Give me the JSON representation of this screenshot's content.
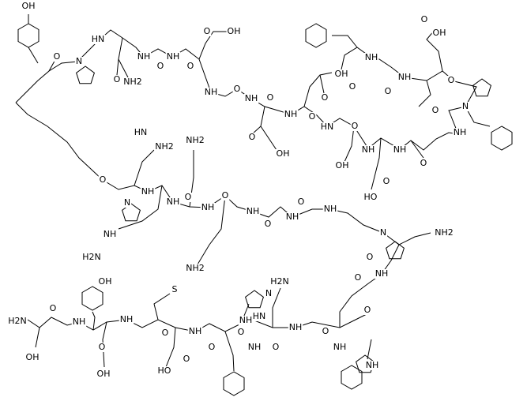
{
  "atoms": [
    "OH",
    "O",
    "N",
    "HN",
    "O",
    "NH2",
    "NH",
    "O",
    "NH",
    "O",
    "OH",
    "O",
    "NH",
    "O",
    "NH",
    "O",
    "O",
    "OH",
    "NH",
    "O",
    "OH",
    "O",
    "O",
    "HN",
    "OH",
    "O",
    "NH",
    "NH",
    "O",
    "O",
    "N",
    "O",
    "NH",
    "O",
    "NH",
    "O",
    "NH",
    "OH",
    "O",
    "HO",
    "NH2",
    "HN",
    "O",
    "N",
    "NH",
    "O",
    "NH",
    "NH2",
    "NH",
    "O",
    "NH",
    "O",
    "NH",
    "O",
    "N",
    "O",
    "NH2",
    "NH",
    "O",
    "NH2",
    "NH",
    "H2N",
    "H2N",
    "O",
    "OH",
    "NH",
    "OH",
    "O",
    "NH",
    "OH",
    "S",
    "O",
    "NH",
    "O",
    "HO",
    "O",
    "NH",
    "H2N",
    "HN",
    "N",
    "O",
    "NH",
    "O",
    "NH",
    "O",
    "NH",
    "O",
    "NH",
    "NH"
  ]
}
